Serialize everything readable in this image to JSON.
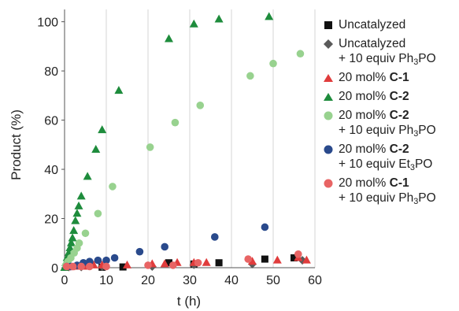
{
  "chart_data": {
    "type": "scatter",
    "xlabel": "t (h)",
    "ylabel": "Product (%)",
    "xlim": [
      0,
      60
    ],
    "ylim": [
      0,
      105
    ],
    "x_ticks": [
      0,
      10,
      20,
      30,
      40,
      50,
      60
    ],
    "y_ticks": [
      0,
      20,
      40,
      60,
      80,
      100
    ],
    "x_tick_labels": [
      "0",
      "10",
      "20",
      "30",
      "40",
      "50",
      "60"
    ],
    "y_tick_labels": [
      "0",
      "20",
      "40",
      "60",
      "80",
      "100"
    ],
    "grid": "vertical",
    "legend_position": "right",
    "series": [
      {
        "name": "Uncatalyzed",
        "marker": "square",
        "color": "#111111",
        "points": [
          [
            9,
            0.2
          ],
          [
            14,
            0.3
          ],
          [
            25,
            2
          ],
          [
            31,
            1.5
          ],
          [
            37,
            2
          ],
          [
            48,
            3.5
          ],
          [
            55,
            4
          ]
        ]
      },
      {
        "name": "Uncatalyzed + 10 equiv Ph3PO",
        "name_line1": "Uncatalyzed",
        "name_line2": "+ 10 equiv Ph3PO",
        "marker": "diamond",
        "color": "#5a5a5a",
        "points": [
          [
            1,
            0.3
          ],
          [
            4,
            0.3
          ],
          [
            9,
            0.5
          ],
          [
            21,
            0.5
          ],
          [
            31,
            1.2
          ],
          [
            45,
            1.5
          ],
          [
            57,
            3
          ]
        ]
      },
      {
        "name": "20 mol% C-1",
        "name_line1": "20 mol% ",
        "name_bold": "C-1",
        "marker": "triangle",
        "color": "#e03c3c",
        "points": [
          [
            0.5,
            0.2
          ],
          [
            1.5,
            0.3
          ],
          [
            3,
            0.5
          ],
          [
            5,
            0.5
          ],
          [
            7,
            1
          ],
          [
            9,
            1
          ],
          [
            15,
            1
          ],
          [
            21,
            1.5
          ],
          [
            24,
            1.5
          ],
          [
            27,
            2
          ],
          [
            31,
            2
          ],
          [
            34,
            2
          ],
          [
            45,
            2.5
          ],
          [
            51,
            3
          ],
          [
            56,
            4
          ],
          [
            58,
            3
          ]
        ]
      },
      {
        "name": "20 mol% C-2",
        "name_line1": "20 mol% ",
        "name_bold": "C-2",
        "marker": "triangle",
        "color": "#1e8c3c",
        "points": [
          [
            0,
            0
          ],
          [
            0.3,
            2
          ],
          [
            0.6,
            4
          ],
          [
            1,
            6
          ],
          [
            1.3,
            8
          ],
          [
            1.6,
            10
          ],
          [
            1.9,
            12
          ],
          [
            2.2,
            15
          ],
          [
            2.6,
            19
          ],
          [
            3,
            22
          ],
          [
            3.4,
            25
          ],
          [
            4,
            29
          ],
          [
            5.5,
            37
          ],
          [
            7.5,
            48
          ],
          [
            9,
            56
          ],
          [
            13,
            72
          ],
          [
            25,
            93
          ],
          [
            31,
            99
          ],
          [
            37,
            101
          ],
          [
            49,
            102
          ]
        ]
      },
      {
        "name": "20 mol% C-2 + 10 equiv Ph3PO",
        "name_line1": "20 mol% ",
        "name_bold": "C-2",
        "name_line2": "+ 10 equiv Ph3PO",
        "marker": "circle",
        "color": "#98d28f",
        "points": [
          [
            0.3,
            1
          ],
          [
            0.8,
            2.5
          ],
          [
            1.5,
            4
          ],
          [
            2.3,
            6
          ],
          [
            3,
            8
          ],
          [
            3.5,
            10
          ],
          [
            5,
            14
          ],
          [
            8,
            22
          ],
          [
            11.5,
            33
          ],
          [
            20.5,
            49
          ],
          [
            26.5,
            59
          ],
          [
            32.5,
            66
          ],
          [
            44.5,
            78
          ],
          [
            50,
            83
          ],
          [
            56.5,
            87
          ]
        ]
      },
      {
        "name": "20 mol% C-2 + 10 equiv Et3PO",
        "name_line1": "20 mol% ",
        "name_bold": "C-2",
        "name_line2": "+ 10 equiv Et3PO",
        "marker": "circle",
        "color": "#2a4a8c",
        "points": [
          [
            0.5,
            0.5
          ],
          [
            1.5,
            0.5
          ],
          [
            3,
            1
          ],
          [
            4.5,
            2
          ],
          [
            6,
            2.5
          ],
          [
            8,
            3
          ],
          [
            10,
            3
          ],
          [
            12,
            4
          ],
          [
            18,
            6.5
          ],
          [
            24,
            8.5
          ],
          [
            36,
            12.5
          ],
          [
            48,
            16.5
          ]
        ]
      },
      {
        "name": "20 mol% C-1 + 10 equiv Ph3PO",
        "name_line1": "20 mol% ",
        "name_bold": "C-1",
        "name_line2": "+ 10 equiv Ph3PO",
        "marker": "circle",
        "color": "#e86464",
        "points": [
          [
            0.5,
            0.5
          ],
          [
            2,
            0.5
          ],
          [
            4,
            0.5
          ],
          [
            6,
            0.5
          ],
          [
            10,
            0.5
          ],
          [
            20,
            1
          ],
          [
            26,
            1
          ],
          [
            32,
            2
          ],
          [
            44,
            3.5
          ],
          [
            56,
            5.5
          ]
        ]
      }
    ]
  }
}
